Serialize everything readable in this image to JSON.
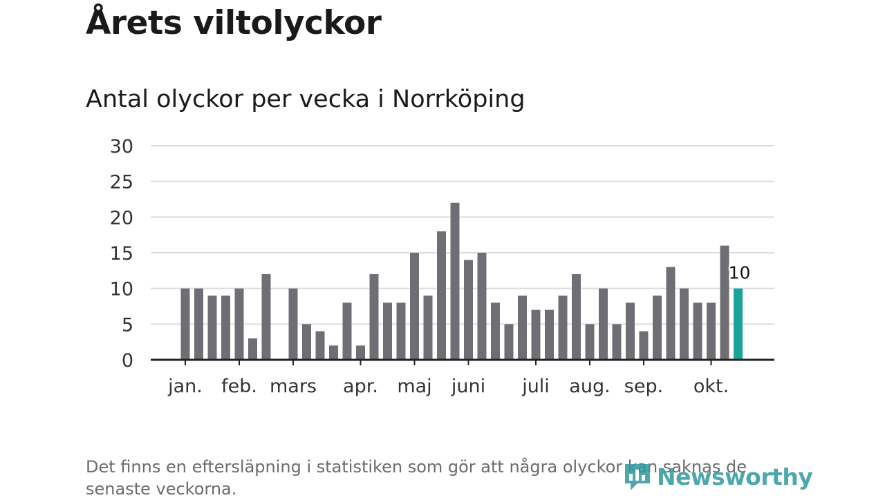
{
  "header": {
    "title": "Årets viltolyckor",
    "subtitle": "Antal olyckor per vecka i Norrköping"
  },
  "footnote": "Det finns en eftersläpning i statistiken som gör att några olyckor kan saknas de senaste veckorna.",
  "logo": {
    "text": "Newsworthy"
  },
  "colors": {
    "bar": "#6f6e74",
    "highlight": "#1aa39a",
    "grid": "#dcdcdc",
    "axis": "#222222",
    "logo": "#2e9aa0"
  },
  "chart_data": {
    "type": "bar",
    "title": "Antal olyckor per vecka i Norrköping",
    "xlabel": "",
    "ylabel": "",
    "ylim": [
      0,
      30
    ],
    "yticks": [
      "0",
      "5",
      "10",
      "15",
      "20",
      "25",
      "30"
    ],
    "grid": true,
    "weeks": [
      1,
      2,
      3,
      4,
      5,
      6,
      7,
      8,
      9,
      10,
      11,
      12,
      13,
      14,
      15,
      16,
      17,
      18,
      19,
      20,
      21,
      22,
      23,
      24,
      25,
      26,
      27,
      28,
      29,
      30,
      31,
      32,
      33,
      34,
      35,
      36,
      37,
      38,
      39,
      40,
      41,
      42
    ],
    "values": [
      10,
      10,
      9,
      9,
      10,
      3,
      12,
      0,
      10,
      5,
      4,
      2,
      8,
      2,
      12,
      8,
      8,
      15,
      9,
      18,
      22,
      14,
      15,
      8,
      5,
      9,
      7,
      7,
      9,
      12,
      5,
      10,
      5,
      8,
      4,
      9,
      13,
      10,
      8,
      8,
      16,
      10
    ],
    "highlight_index": 41,
    "highlight_label": "10",
    "month_labels": [
      {
        "label": "jan.",
        "week": 1
      },
      {
        "label": "feb.",
        "week": 5
      },
      {
        "label": "mars",
        "week": 9
      },
      {
        "label": "apr.",
        "week": 14
      },
      {
        "label": "maj",
        "week": 18
      },
      {
        "label": "juni",
        "week": 22
      },
      {
        "label": "juli",
        "week": 27
      },
      {
        "label": "aug.",
        "week": 31
      },
      {
        "label": "sep.",
        "week": 35
      },
      {
        "label": "okt.",
        "week": 40
      }
    ]
  }
}
